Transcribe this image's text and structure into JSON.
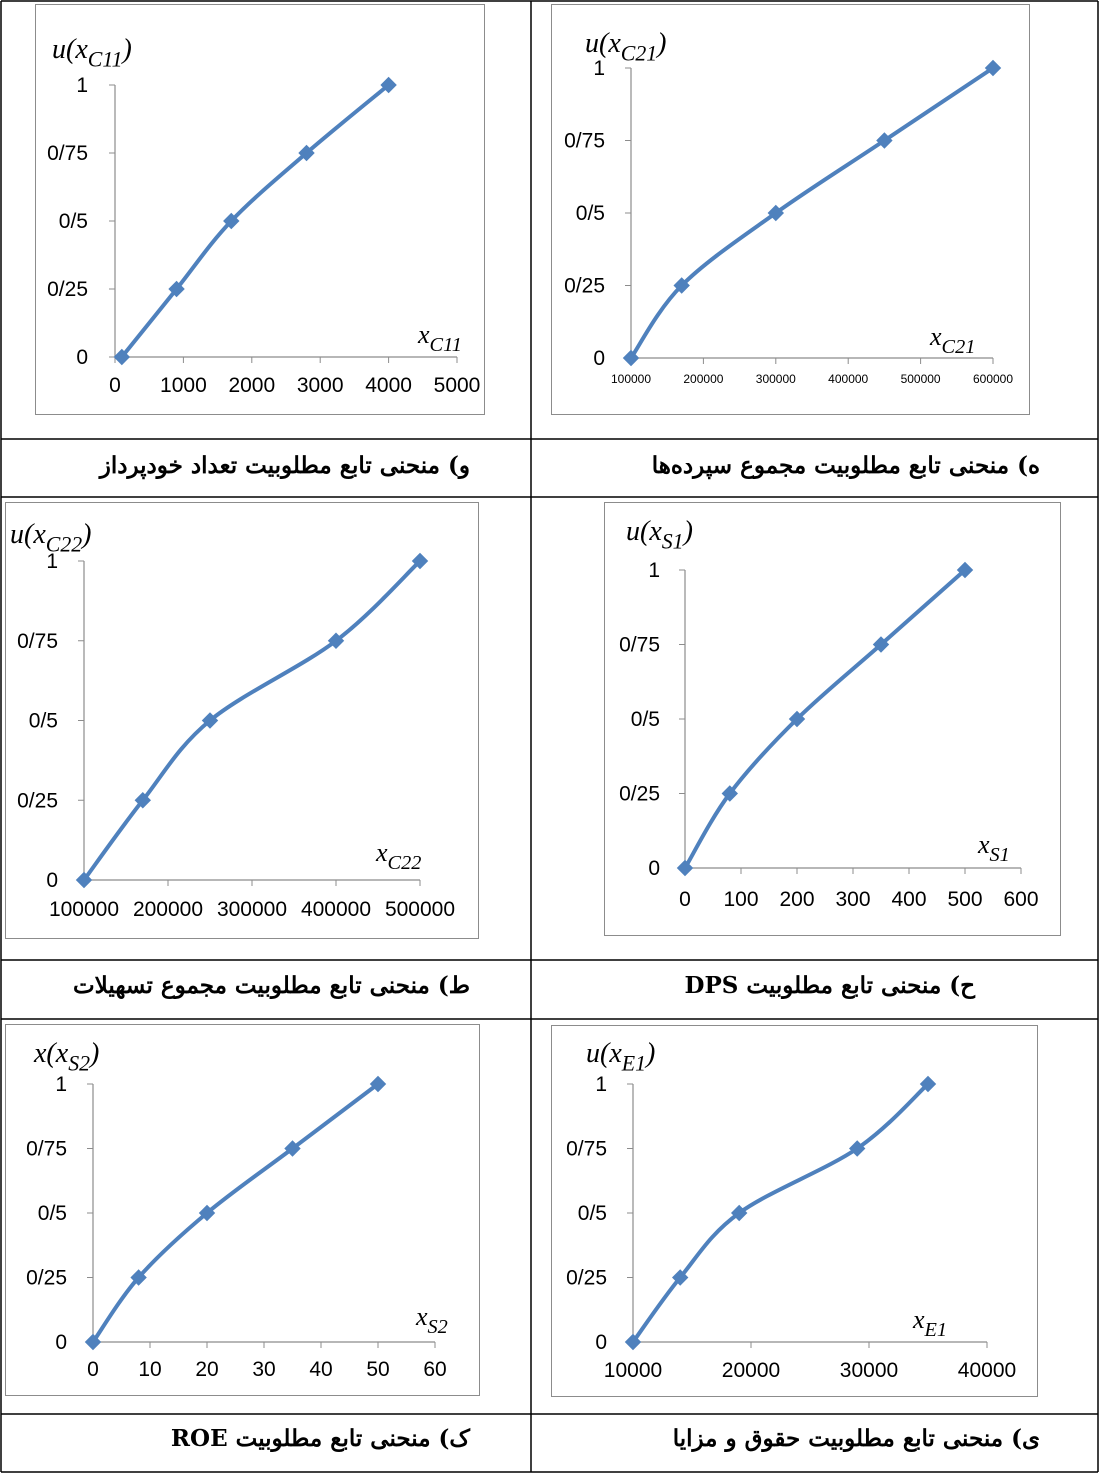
{
  "chart_data": [
    {
      "type": "line",
      "id": "c11",
      "ylabel": "u(xC11)",
      "ylabel_parts": {
        "pre": "u(x",
        "sub": "C11",
        "post": ")"
      },
      "xlabel": "xC11",
      "xlabel_parts": {
        "pre": "x",
        "sub": "C11",
        "post": ""
      },
      "xlim": [
        0,
        5000
      ],
      "xticks": [
        0,
        1000,
        2000,
        3000,
        4000,
        5000
      ],
      "xtick_labels": [
        "0",
        "1000",
        "2000",
        "3000",
        "4000",
        "5000"
      ],
      "ylim": [
        0,
        1
      ],
      "yticks": [
        0,
        0.25,
        0.5,
        0.75,
        1
      ],
      "ytick_labels": [
        "0",
        "0/25",
        "0/5",
        "0/75",
        "1"
      ],
      "grid": false,
      "series": [
        {
          "x": [
            100,
            900,
            1700,
            2800,
            4000
          ],
          "values": [
            0,
            0.25,
            0.5,
            0.75,
            1
          ],
          "color": "#4f81bd",
          "marker": "diamond"
        }
      ],
      "caption": "و) منحنی تابع مطلوبیت تعداد خودپرداز"
    },
    {
      "type": "line",
      "id": "c21",
      "ylabel": "u(xC21)",
      "ylabel_parts": {
        "pre": "u(x",
        "sub": "C21",
        "post": ")"
      },
      "xlabel": "xC21",
      "xlabel_parts": {
        "pre": "x",
        "sub": "C21",
        "post": ""
      },
      "xlim": [
        100000,
        600000
      ],
      "xticks": [
        100000,
        200000,
        300000,
        400000,
        500000,
        600000
      ],
      "xtick_labels": [
        "100000",
        "200000",
        "300000",
        "400000",
        "500000",
        "600000"
      ],
      "ylim": [
        0,
        1
      ],
      "yticks": [
        0,
        0.25,
        0.5,
        0.75,
        1
      ],
      "ytick_labels": [
        "0",
        "0/25",
        "0/5",
        "0/75",
        "1"
      ],
      "grid": false,
      "series": [
        {
          "x": [
            100000,
            170000,
            300000,
            450000,
            600000
          ],
          "values": [
            0,
            0.25,
            0.5,
            0.75,
            1
          ],
          "color": "#4f81bd",
          "marker": "diamond"
        }
      ],
      "caption": "ه) منحنی تابع مطلوبیت مجموع سپرده‌ها"
    },
    {
      "type": "line",
      "id": "c22",
      "ylabel": "u(xC22)",
      "ylabel_parts": {
        "pre": "u(x",
        "sub": "C22",
        "post": ")"
      },
      "xlabel": "xC22",
      "xlabel_parts": {
        "pre": "x",
        "sub": "C22",
        "post": ""
      },
      "xlim": [
        100000,
        500000
      ],
      "xticks": [
        100000,
        200000,
        300000,
        400000,
        500000
      ],
      "xtick_labels": [
        "100000",
        "200000",
        "300000",
        "400000",
        "500000"
      ],
      "ylim": [
        0,
        1
      ],
      "yticks": [
        0,
        0.25,
        0.5,
        0.75,
        1
      ],
      "ytick_labels": [
        "0",
        "0/25",
        "0/5",
        "0/75",
        "1"
      ],
      "grid": false,
      "series": [
        {
          "x": [
            100000,
            170000,
            250000,
            400000,
            500000
          ],
          "values": [
            0,
            0.25,
            0.5,
            0.75,
            1
          ],
          "color": "#4f81bd",
          "marker": "diamond"
        }
      ],
      "caption": "ط)  منحنی تابع مطلوبیت مجموع تسهیلات"
    },
    {
      "type": "line",
      "id": "s1",
      "ylabel": "u(xS1)",
      "ylabel_parts": {
        "pre": "u(x",
        "sub": "S1",
        "post": ")"
      },
      "xlabel": "xS1",
      "xlabel_parts": {
        "pre": "x",
        "sub": "S1",
        "post": ""
      },
      "xlim": [
        0,
        600
      ],
      "xticks": [
        0,
        100,
        200,
        300,
        400,
        500,
        600
      ],
      "xtick_labels": [
        "0",
        "100",
        "200",
        "300",
        "400",
        "500",
        "600"
      ],
      "ylim": [
        0,
        1
      ],
      "yticks": [
        0,
        0.25,
        0.5,
        0.75,
        1
      ],
      "ytick_labels": [
        "0",
        "0/25",
        "0/5",
        "0/75",
        "1"
      ],
      "grid": false,
      "series": [
        {
          "x": [
            0,
            80,
            200,
            350,
            500
          ],
          "values": [
            0,
            0.25,
            0.5,
            0.75,
            1
          ],
          "color": "#4f81bd",
          "marker": "diamond"
        }
      ],
      "caption": "ح) منحنی تابع مطلوبیت DPS"
    },
    {
      "type": "line",
      "id": "s2",
      "ylabel": "x(xS2)",
      "ylabel_parts": {
        "pre": "x(x",
        "sub": "S2",
        "post": ")"
      },
      "xlabel": "xS2",
      "xlabel_parts": {
        "pre": "x",
        "sub": "S2",
        "post": ""
      },
      "xlim": [
        0,
        60
      ],
      "xticks": [
        0,
        10,
        20,
        30,
        40,
        50,
        60
      ],
      "xtick_labels": [
        "0",
        "10",
        "20",
        "30",
        "40",
        "50",
        "60"
      ],
      "ylim": [
        0,
        1
      ],
      "yticks": [
        0,
        0.25,
        0.5,
        0.75,
        1
      ],
      "ytick_labels": [
        "0",
        "0/25",
        "0/5",
        "0/75",
        "1"
      ],
      "grid": false,
      "series": [
        {
          "x": [
            0,
            8,
            20,
            35,
            50
          ],
          "values": [
            0,
            0.25,
            0.5,
            0.75,
            1
          ],
          "color": "#4f81bd",
          "marker": "diamond"
        }
      ],
      "caption": "ک) منحنی تابع مطلوبیت ROE"
    },
    {
      "type": "line",
      "id": "e1",
      "ylabel": "u(xE1)",
      "ylabel_parts": {
        "pre": "u(x",
        "sub": "E1",
        "post": ")"
      },
      "xlabel": "xE1",
      "xlabel_parts": {
        "pre": "x",
        "sub": "E1",
        "post": ""
      },
      "xlim": [
        10000,
        40000
      ],
      "xticks": [
        10000,
        20000,
        30000,
        40000
      ],
      "xtick_labels": [
        "10000",
        "20000",
        "30000",
        "40000"
      ],
      "ylim": [
        0,
        1
      ],
      "yticks": [
        0,
        0.25,
        0.5,
        0.75,
        1
      ],
      "ytick_labels": [
        "0",
        "0/25",
        "0/5",
        "0/75",
        "1"
      ],
      "grid": false,
      "series": [
        {
          "x": [
            10000,
            14000,
            19000,
            29000,
            35000
          ],
          "values": [
            0,
            0.25,
            0.5,
            0.75,
            1
          ],
          "color": "#4f81bd",
          "marker": "diamond"
        }
      ],
      "caption": "ی) منحنی تابع مطلوبیت حقوق و مزایا"
    }
  ]
}
